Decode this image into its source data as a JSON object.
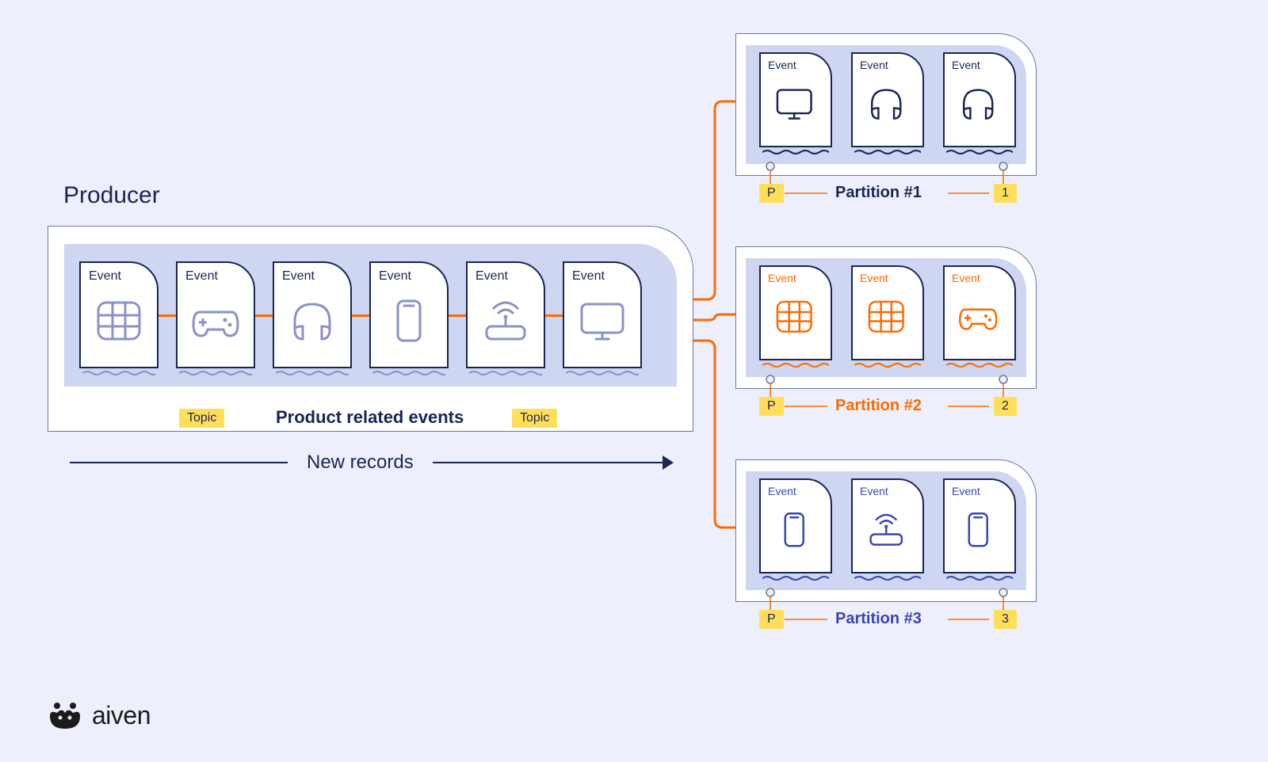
{
  "colors": {
    "bg": "#edf0fc",
    "navy": "#1a2554",
    "inner_fill": "#cfd6f2",
    "card_border": "#1a2554",
    "grey_stroke": "#6b7a99",
    "orange": "#ff6a00",
    "purple": "#3a44b5",
    "lavender": "#8a92c9",
    "badge_bg": "#ffdf5a",
    "badge_text": "#1a2554"
  },
  "typography": {
    "title_fontsize": 30,
    "event_label_fontsize": 16,
    "event_label_fontsize_sm": 14,
    "topic_label_fontsize": 22,
    "partition_label_fontsize": 20,
    "newrecords_fontsize": 24,
    "brand_fontsize": 32
  },
  "producer": {
    "title": "Producer",
    "event_label": "Event",
    "events": [
      {
        "icon": "grid"
      },
      {
        "icon": "gamepad"
      },
      {
        "icon": "headphones"
      },
      {
        "icon": "phone"
      },
      {
        "icon": "router"
      },
      {
        "icon": "monitor"
      }
    ],
    "topic_tag": "Topic",
    "topic_title": "Product related events",
    "new_records": "New records"
  },
  "partitions": [
    {
      "label": "Partition #1",
      "label_color": "#1a2554",
      "number": "1",
      "p_badge": "P",
      "icon_color": "#1a2554",
      "event_label": "Event",
      "events": [
        {
          "icon": "monitor"
        },
        {
          "icon": "headphones"
        },
        {
          "icon": "headphones"
        }
      ]
    },
    {
      "label": "Partition #2",
      "label_color": "#ff6a00",
      "number": "2",
      "p_badge": "P",
      "icon_color": "#ff6a00",
      "event_label": "Event",
      "events": [
        {
          "icon": "grid"
        },
        {
          "icon": "grid"
        },
        {
          "icon": "gamepad"
        }
      ]
    },
    {
      "label": "Partition #3",
      "label_color": "#3a44b5",
      "number": "3",
      "p_badge": "P",
      "icon_color": "#3a44b5",
      "event_label": "Event",
      "events": [
        {
          "icon": "phone"
        },
        {
          "icon": "router"
        },
        {
          "icon": "phone"
        }
      ]
    }
  ],
  "brand": {
    "name": "aiven"
  }
}
